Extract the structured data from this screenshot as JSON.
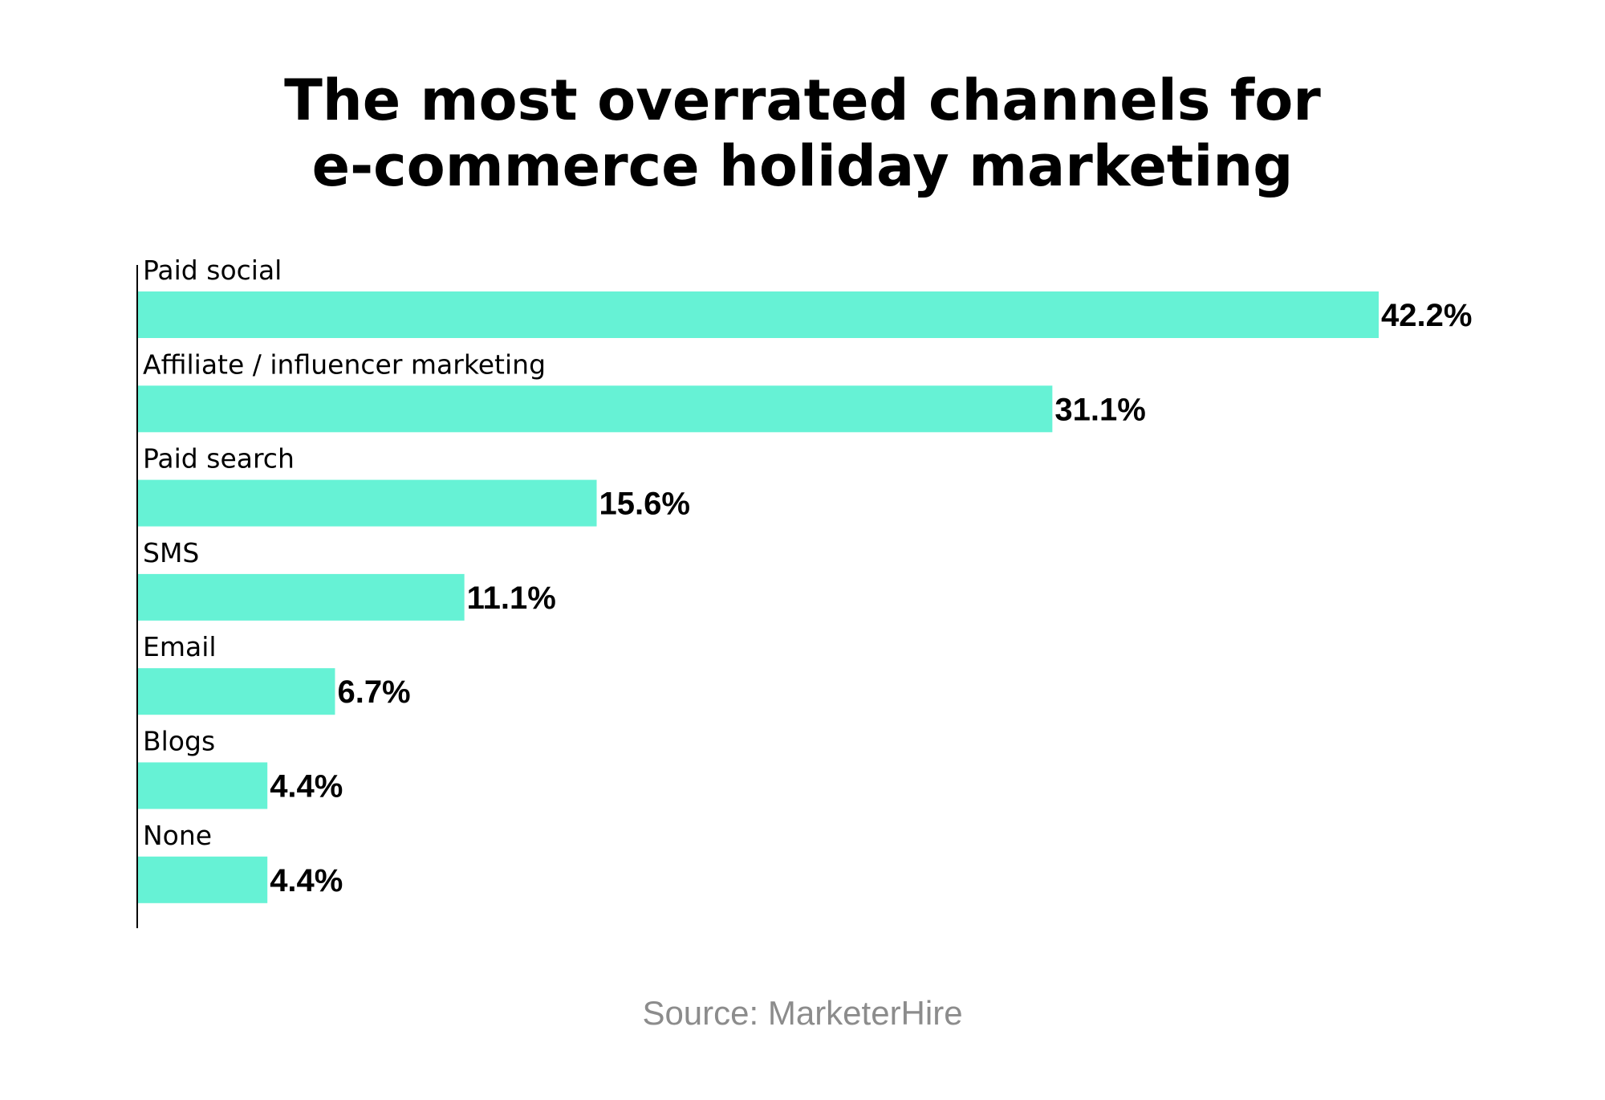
{
  "chart_data": {
    "type": "bar",
    "orientation": "horizontal",
    "title_lines": [
      "The most overrated channels for",
      "e-commerce holiday marketing"
    ],
    "categories": [
      "Paid social",
      "Affiliate / influencer marketing",
      "Paid search",
      "SMS",
      "Email",
      "Blogs",
      "None"
    ],
    "values": [
      42.2,
      31.1,
      15.6,
      11.1,
      6.7,
      4.4,
      4.4
    ],
    "value_labels": [
      "42.2%",
      "31.1%",
      "15.6%",
      "11.1%",
      "6.7%",
      "4.4%",
      "4.4%"
    ],
    "xlim": [
      0,
      42.2
    ],
    "grid": false,
    "legend": "none",
    "bar_color": "#66f2d5",
    "source": "Source: MarketerHire"
  }
}
